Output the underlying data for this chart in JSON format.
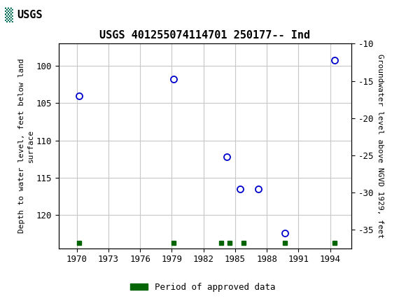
{
  "title": "USGS 401255074114701 250177-- Ind",
  "x_ticks": [
    1970,
    1973,
    1976,
    1979,
    1982,
    1985,
    1988,
    1991,
    1994
  ],
  "xlim": [
    1968.3,
    1996.0
  ],
  "data_x": [
    1970.2,
    1979.2,
    1984.2,
    1985.5,
    1987.2,
    1989.7,
    1994.4
  ],
  "data_y_left": [
    104.0,
    101.8,
    112.2,
    116.5,
    116.5,
    122.5,
    99.2
  ],
  "green_x": [
    1970.2,
    1979.2,
    1983.7,
    1984.5,
    1985.8,
    1989.7,
    1994.4
  ],
  "ylim_left": [
    97.0,
    124.5
  ],
  "ylim_right": [
    -10.0,
    -37.5
  ],
  "yticks_left": [
    100,
    105,
    110,
    115,
    120
  ],
  "yticks_right": [
    -10,
    -15,
    -20,
    -25,
    -30,
    -35
  ],
  "header_bg_color": "#006B54",
  "plot_bg_color": "#FFFFFF",
  "grid_color": "#C8C8C8",
  "point_color": "#0000CC",
  "green_color": "#006400",
  "ylabel_left": "Depth to water level, feet below land\nsurface",
  "ylabel_right": "Groundwater level above NGVD 1929, feet",
  "legend_label": "Period of approved data"
}
